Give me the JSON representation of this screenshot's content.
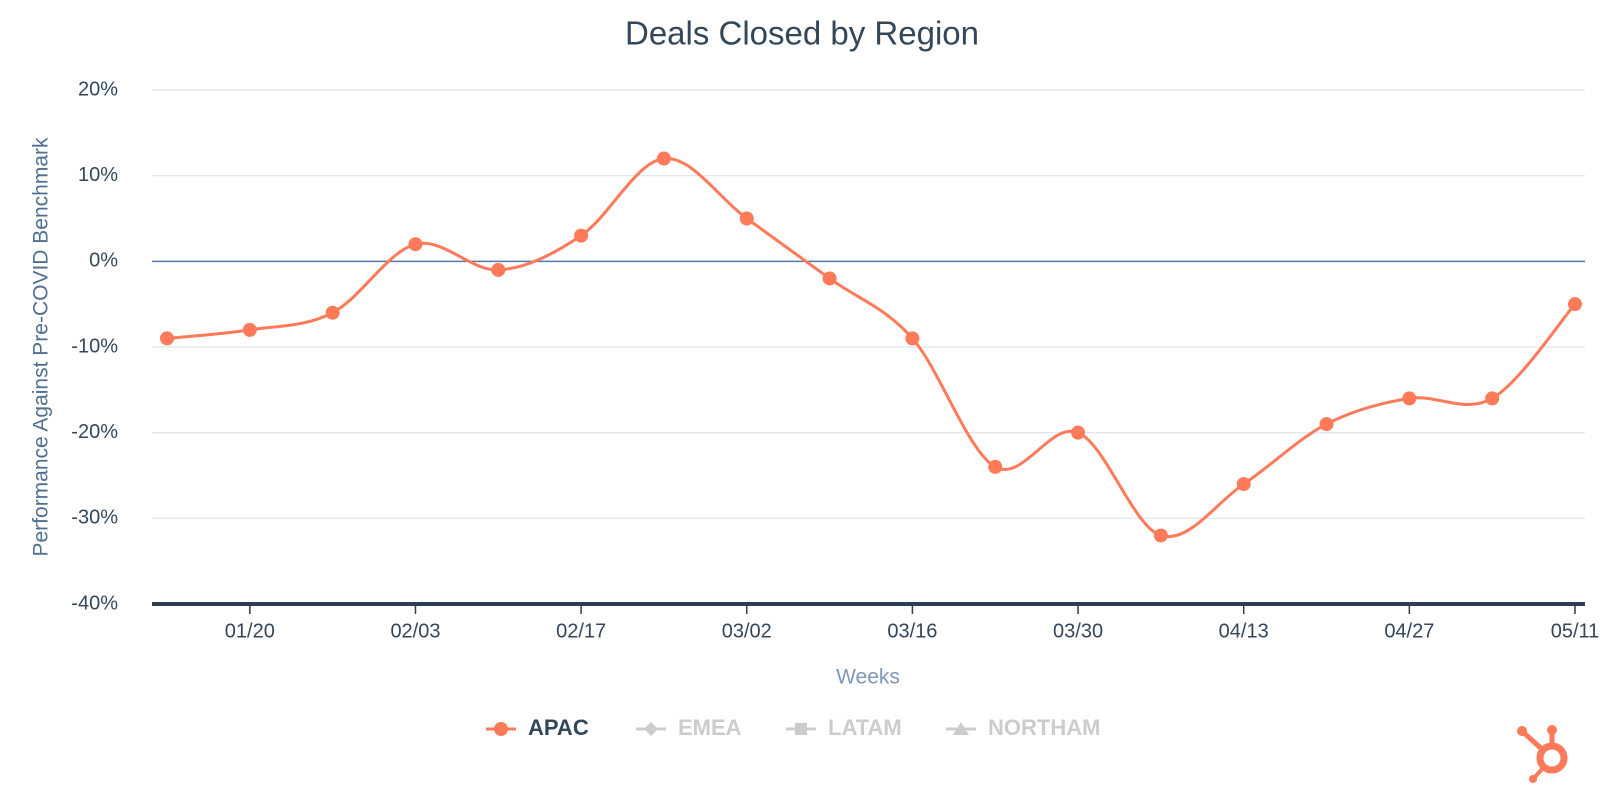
{
  "chart_data": {
    "type": "line",
    "title": "Deals Closed by Region",
    "x_label": "Weeks",
    "y_label": "Performance Against Pre-COVID Benchmark",
    "categories": [
      null,
      "01/20",
      null,
      "02/03",
      null,
      "02/17",
      null,
      "03/02",
      null,
      "03/16",
      null,
      "03/30",
      null,
      "04/13",
      null,
      "04/27",
      null,
      "05/11"
    ],
    "series": [
      {
        "name": "APAC",
        "color": "#ff7a59",
        "values": [
          -9,
          -8,
          -6,
          2,
          -1,
          3,
          12,
          5,
          -2,
          -9,
          -24,
          -20,
          -32,
          -26,
          -19,
          -16,
          -16,
          -5
        ]
      }
    ],
    "hidden_series": [
      "EMEA",
      "LATAM",
      "NORTHAM"
    ],
    "ylim": [
      -40,
      20
    ],
    "yticks": [
      {
        "value": -40,
        "label": "-40%"
      },
      {
        "value": -30,
        "label": "-30%"
      },
      {
        "value": -20,
        "label": "-20%"
      },
      {
        "value": -10,
        "label": "-10%"
      },
      {
        "value": 0,
        "label": "0%"
      },
      {
        "value": 10,
        "label": "10%"
      },
      {
        "value": 20,
        "label": "20%"
      }
    ],
    "grid": true,
    "smooth": true,
    "legend": "bottom"
  }
}
